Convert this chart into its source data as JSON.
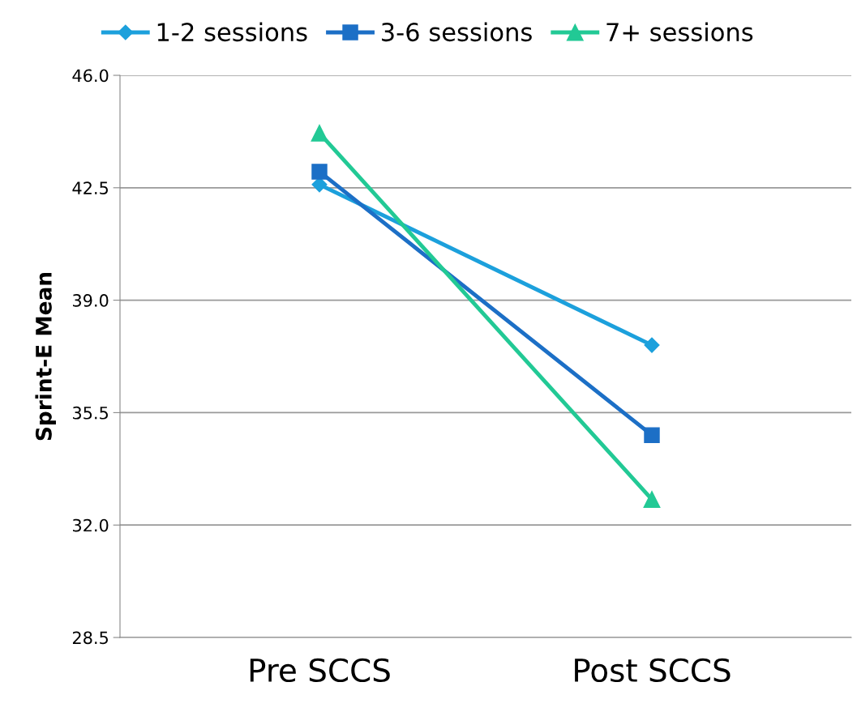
{
  "chart_data": {
    "type": "line",
    "ylabel": "Sprint-E Mean",
    "categories": [
      "Pre SCCS",
      "Post SCCS"
    ],
    "series": [
      {
        "name": "1-2 sessions",
        "color": "#1ca0dc",
        "marker": "diamond",
        "values": [
          42.6,
          37.6
        ]
      },
      {
        "name": "3-6 sessions",
        "color": "#1c6fc6",
        "marker": "square",
        "values": [
          43.0,
          34.8
        ]
      },
      {
        "name": "7+ sessions",
        "color": "#22c995",
        "marker": "triangle",
        "values": [
          44.2,
          32.8
        ]
      }
    ],
    "ylim": [
      28.5,
      46.0
    ],
    "yticks": [
      {
        "value": 28.5,
        "label": "28.5"
      },
      {
        "value": 32.0,
        "label": "32.0"
      },
      {
        "value": 35.5,
        "label": "35.5"
      },
      {
        "value": 39.0,
        "label": "39.0"
      },
      {
        "value": 42.5,
        "label": "42.5"
      },
      {
        "value": 46.0,
        "label": "46.0"
      }
    ],
    "grid": "y",
    "legend": "top",
    "line_style": "solid"
  }
}
